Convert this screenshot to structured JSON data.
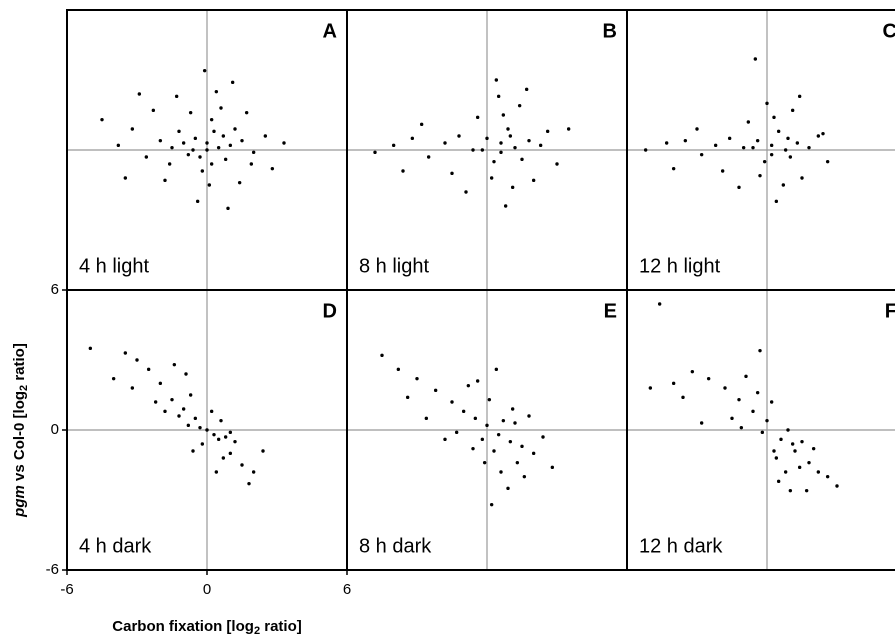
{
  "chart_data": [
    {
      "type": "scatter",
      "panel_label": "A",
      "annotation": "4 h light",
      "color": "#000000",
      "zero_lines": true,
      "xlim": [
        -6,
        6
      ],
      "ylim": [
        -6,
        6
      ],
      "x": [
        0,
        0.5,
        -0.5,
        1,
        -1,
        0.3,
        -0.3,
        0.8,
        -0.8,
        1.5,
        -1.5,
        0.2,
        -0.2,
        1.2,
        -1.2,
        2,
        -2,
        0.6,
        -0.7,
        0.1,
        2.5,
        -2.6,
        -3.2,
        -3.8,
        2.8,
        0.4,
        -1.3,
        -0.4,
        1.4,
        -1.8,
        1.7,
        -2.3,
        -4.5,
        3.3,
        0.9,
        -0.1,
        -3.5,
        1.1,
        -2.9,
        0.7,
        -0.6,
        0.2,
        1.9,
        -1.6,
        0
      ],
      "values": [
        0.3,
        0.1,
        0.5,
        0.2,
        0.3,
        0.8,
        -0.3,
        -0.4,
        -0.2,
        0.4,
        0.1,
        1.3,
        -0.9,
        0.9,
        0.8,
        -0.1,
        0.4,
        1.8,
        1.6,
        -1.5,
        0.6,
        -0.3,
        0.9,
        0.2,
        -0.8,
        2.5,
        2.3,
        -2.2,
        -1.4,
        -1.3,
        1.6,
        1.7,
        1.3,
        0.3,
        -2.5,
        3.4,
        -1.2,
        2.9,
        2.4,
        0.6,
        0,
        -0.6,
        -0.6,
        -0.6,
        0
      ]
    },
    {
      "type": "scatter",
      "panel_label": "B",
      "annotation": "8 h light",
      "color": "#000000",
      "zero_lines": true,
      "xlim": [
        -6,
        6
      ],
      "ylim": [
        -6,
        6
      ],
      "x": [
        0.6,
        1.2,
        0,
        1.8,
        -0.6,
        0.9,
        0.3,
        1.5,
        -1.2,
        2.3,
        -1.8,
        0.7,
        0.2,
        2.6,
        -2.5,
        -3.2,
        1.1,
        0.5,
        -0.4,
        3.0,
        -4.0,
        -4.8,
        1.4,
        0.8,
        -1.5,
        2.0,
        -2.8,
        0.4,
        1.7,
        -0.9,
        3.5,
        -3.6,
        0.6,
        -0.2,
        1.0
      ],
      "values": [
        0.3,
        0.1,
        0.5,
        0.4,
        0.0,
        0.9,
        -0.5,
        -0.4,
        0.6,
        0.2,
        0.3,
        1.5,
        -1.2,
        0.8,
        -0.3,
        0.5,
        -1.6,
        2.3,
        1.4,
        -0.6,
        0.2,
        -0.1,
        1.9,
        -2.4,
        -1.0,
        -1.3,
        1.1,
        3.0,
        2.6,
        -1.8,
        0.9,
        -0.9,
        -0.1,
        0.0,
        0.6
      ]
    },
    {
      "type": "scatter",
      "panel_label": "C",
      "annotation": "12 h light",
      "color": "#000000",
      "zero_lines": true,
      "xlim": [
        -6,
        6
      ],
      "ylim": [
        -6,
        6
      ],
      "x": [
        0.2,
        0.8,
        -0.4,
        1.3,
        -1.0,
        0.5,
        -0.1,
        1.0,
        -1.6,
        1.8,
        -2.2,
        0.3,
        -0.3,
        2.2,
        -2.8,
        -3.5,
        0.7,
        0.0,
        -0.8,
        2.6,
        -4.3,
        -5.2,
        1.1,
        0.4,
        -1.9,
        1.5,
        -3.0,
        -0.5,
        1.4,
        -1.2,
        2.4,
        -4.0,
        0.2,
        -0.6,
        0.9
      ],
      "values": [
        0.2,
        0.0,
        0.4,
        0.3,
        0.1,
        0.8,
        -0.5,
        -0.3,
        0.5,
        0.1,
        0.2,
        1.4,
        -1.1,
        0.6,
        -0.2,
        0.4,
        -1.5,
        2.0,
        1.2,
        -0.5,
        0.3,
        0.0,
        1.7,
        -2.2,
        -0.9,
        -1.2,
        0.9,
        3.9,
        2.3,
        -1.6,
        0.7,
        -0.8,
        -0.2,
        0.1,
        0.5
      ]
    },
    {
      "type": "scatter",
      "panel_label": "D",
      "annotation": "4 h dark",
      "color": "#000000",
      "zero_lines": true,
      "xlim": [
        -6,
        6
      ],
      "ylim": [
        -6,
        6
      ],
      "xticks": [
        -6,
        0,
        6
      ],
      "yticks": [
        -6,
        0,
        6
      ],
      "x_label": [
        "Carbon fixation [log",
        "2",
        " ratio]"
      ],
      "y_label": [
        "pgm",
        " vs Col-0 [log",
        "2",
        " ratio]"
      ],
      "x": [
        0,
        -0.5,
        0.5,
        -1,
        1,
        -1.5,
        1.5,
        -0.3,
        0.3,
        -0.8,
        0.8,
        -1.2,
        1.2,
        -2,
        2,
        -2.5,
        -3,
        -3.5,
        -4,
        -5,
        0.2,
        -0.2,
        0.7,
        -0.7,
        1.8,
        -1.8,
        0.4,
        -0.9,
        -2.2,
        -1.4,
        2.4,
        1.0,
        -3.2,
        -0.6,
        0.6
      ],
      "values": [
        0,
        0.5,
        -0.4,
        0.9,
        -1,
        1.3,
        -1.5,
        0.1,
        -0.2,
        0.2,
        -0.3,
        0.6,
        -0.5,
        2,
        -1.8,
        2.6,
        3,
        3.3,
        2.2,
        3.5,
        0.8,
        -0.6,
        -1.2,
        1.5,
        -2.3,
        0.8,
        -1.8,
        2.4,
        1.2,
        2.8,
        -0.9,
        -0.1,
        1.8,
        -0.9,
        0.4
      ]
    },
    {
      "type": "scatter",
      "panel_label": "E",
      "annotation": "8 h dark",
      "color": "#000000",
      "zero_lines": true,
      "xlim": [
        -6,
        6
      ],
      "ylim": [
        -6,
        6
      ],
      "x": [
        0.5,
        0,
        1,
        -0.5,
        1.5,
        -1,
        2,
        0.3,
        0.7,
        -0.2,
        1.2,
        -1.5,
        2.4,
        -2.2,
        -3,
        -3.8,
        -4.5,
        0.6,
        0.1,
        1.3,
        -0.8,
        1.8,
        -1.3,
        0.9,
        -0.1,
        -2.6,
        -3.4,
        0.4,
        1.6,
        -1.8,
        2.8,
        -0.4,
        1.1,
        -0.6,
        0.2
      ],
      "values": [
        -0.2,
        0.2,
        -0.5,
        0.5,
        -0.7,
        0.8,
        -1,
        -0.9,
        0.4,
        -0.4,
        0.3,
        1.2,
        -0.3,
        1.7,
        2.2,
        2.6,
        3.2,
        -1.8,
        1.3,
        -1.4,
        1.9,
        0.6,
        -0.1,
        -2.5,
        -1.4,
        0.5,
        1.4,
        2.6,
        -2,
        -0.4,
        -1.6,
        2.1,
        0.9,
        -0.8,
        -3.2
      ]
    },
    {
      "type": "scatter",
      "panel_label": "F",
      "annotation": "12 h dark",
      "color": "#000000",
      "zero_lines": true,
      "xlim": [
        -6,
        6
      ],
      "ylim": [
        -6,
        6
      ],
      "x": [
        0.6,
        0,
        1.2,
        -0.6,
        1.8,
        -1.2,
        2.2,
        0.3,
        0.9,
        -0.2,
        1.5,
        -1.8,
        2.6,
        -2.5,
        -3.2,
        -4,
        -5,
        0.8,
        0.2,
        1.4,
        -0.9,
        2,
        -1.5,
        1,
        -0.4,
        -2.8,
        -3.6,
        0.5,
        1.7,
        -1.1,
        3,
        -0.3,
        1.1,
        -4.6,
        0.4
      ],
      "values": [
        -0.4,
        0.4,
        -0.9,
        0.8,
        -1.4,
        1.3,
        -1.8,
        -0.9,
        0,
        -0.1,
        -0.5,
        1.8,
        -2,
        2.2,
        2.5,
        2,
        1.8,
        -1.8,
        1.2,
        -1.6,
        2.3,
        -0.8,
        0.5,
        -2.6,
        1.6,
        0.3,
        1.4,
        -2.2,
        -2.6,
        0.1,
        -2.4,
        3.4,
        -0.6,
        5.4,
        -1.2
      ]
    }
  ]
}
